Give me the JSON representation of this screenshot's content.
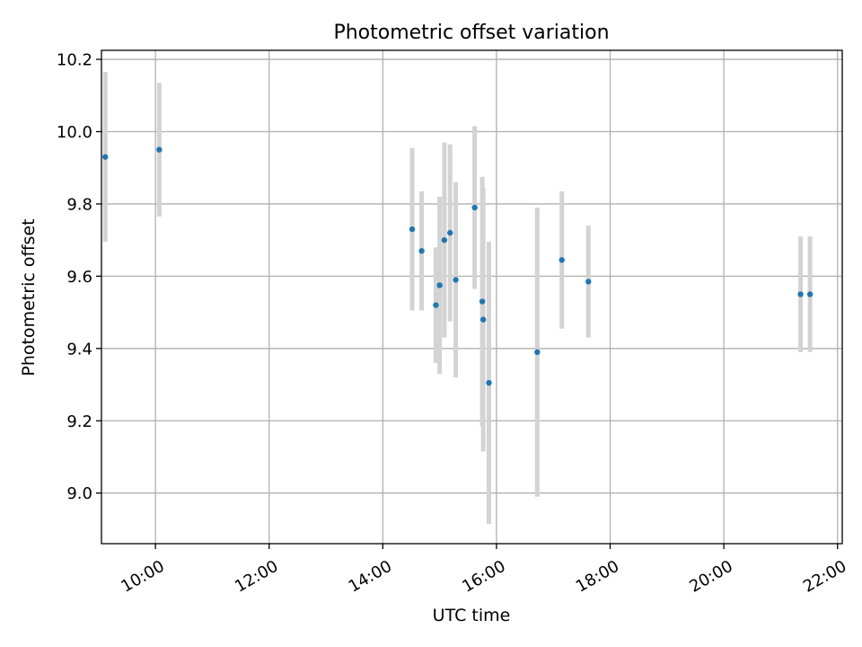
{
  "chart_data": {
    "type": "scatter",
    "title": "Photometric offset variation",
    "xlabel": "UTC time",
    "ylabel": "Photometric offset",
    "xlim": [
      "09:03",
      "22:05"
    ],
    "ylim": [
      8.86,
      10.225
    ],
    "grid": true,
    "x_ticks": [
      "10:00",
      "12:00",
      "14:00",
      "16:00",
      "18:00",
      "20:00",
      "22:00"
    ],
    "y_ticks": [
      "9.0",
      "9.2",
      "9.4",
      "9.6",
      "9.8",
      "10.0",
      "10.2"
    ],
    "series": [
      {
        "marker_color": "#1f77b4",
        "errorbar_color": "#d3d3d3",
        "points": [
          {
            "x": "09:07",
            "y": 9.93,
            "err": 0.235
          },
          {
            "x": "10:04",
            "y": 9.95,
            "err": 0.185
          },
          {
            "x": "14:31",
            "y": 9.73,
            "err": 0.225
          },
          {
            "x": "14:41",
            "y": 9.67,
            "err": 0.165
          },
          {
            "x": "14:56",
            "y": 9.52,
            "err": 0.16
          },
          {
            "x": "15:00",
            "y": 9.575,
            "err": 0.245
          },
          {
            "x": "15:05",
            "y": 9.7,
            "err": 0.27
          },
          {
            "x": "15:11",
            "y": 9.72,
            "err": 0.245
          },
          {
            "x": "15:17",
            "y": 9.59,
            "err": 0.27
          },
          {
            "x": "15:37",
            "y": 9.79,
            "err": 0.225
          },
          {
            "x": "15:45",
            "y": 9.53,
            "err": 0.345
          },
          {
            "x": "15:46",
            "y": 9.48,
            "err": 0.365
          },
          {
            "x": "15:52",
            "y": 9.305,
            "err": 0.39
          },
          {
            "x": "16:43",
            "y": 9.39,
            "err": 0.4
          },
          {
            "x": "17:09",
            "y": 9.645,
            "err": 0.19
          },
          {
            "x": "17:37",
            "y": 9.585,
            "err": 0.155
          },
          {
            "x": "21:21",
            "y": 9.55,
            "err": 0.16
          },
          {
            "x": "21:31",
            "y": 9.55,
            "err": 0.16
          }
        ]
      }
    ]
  }
}
